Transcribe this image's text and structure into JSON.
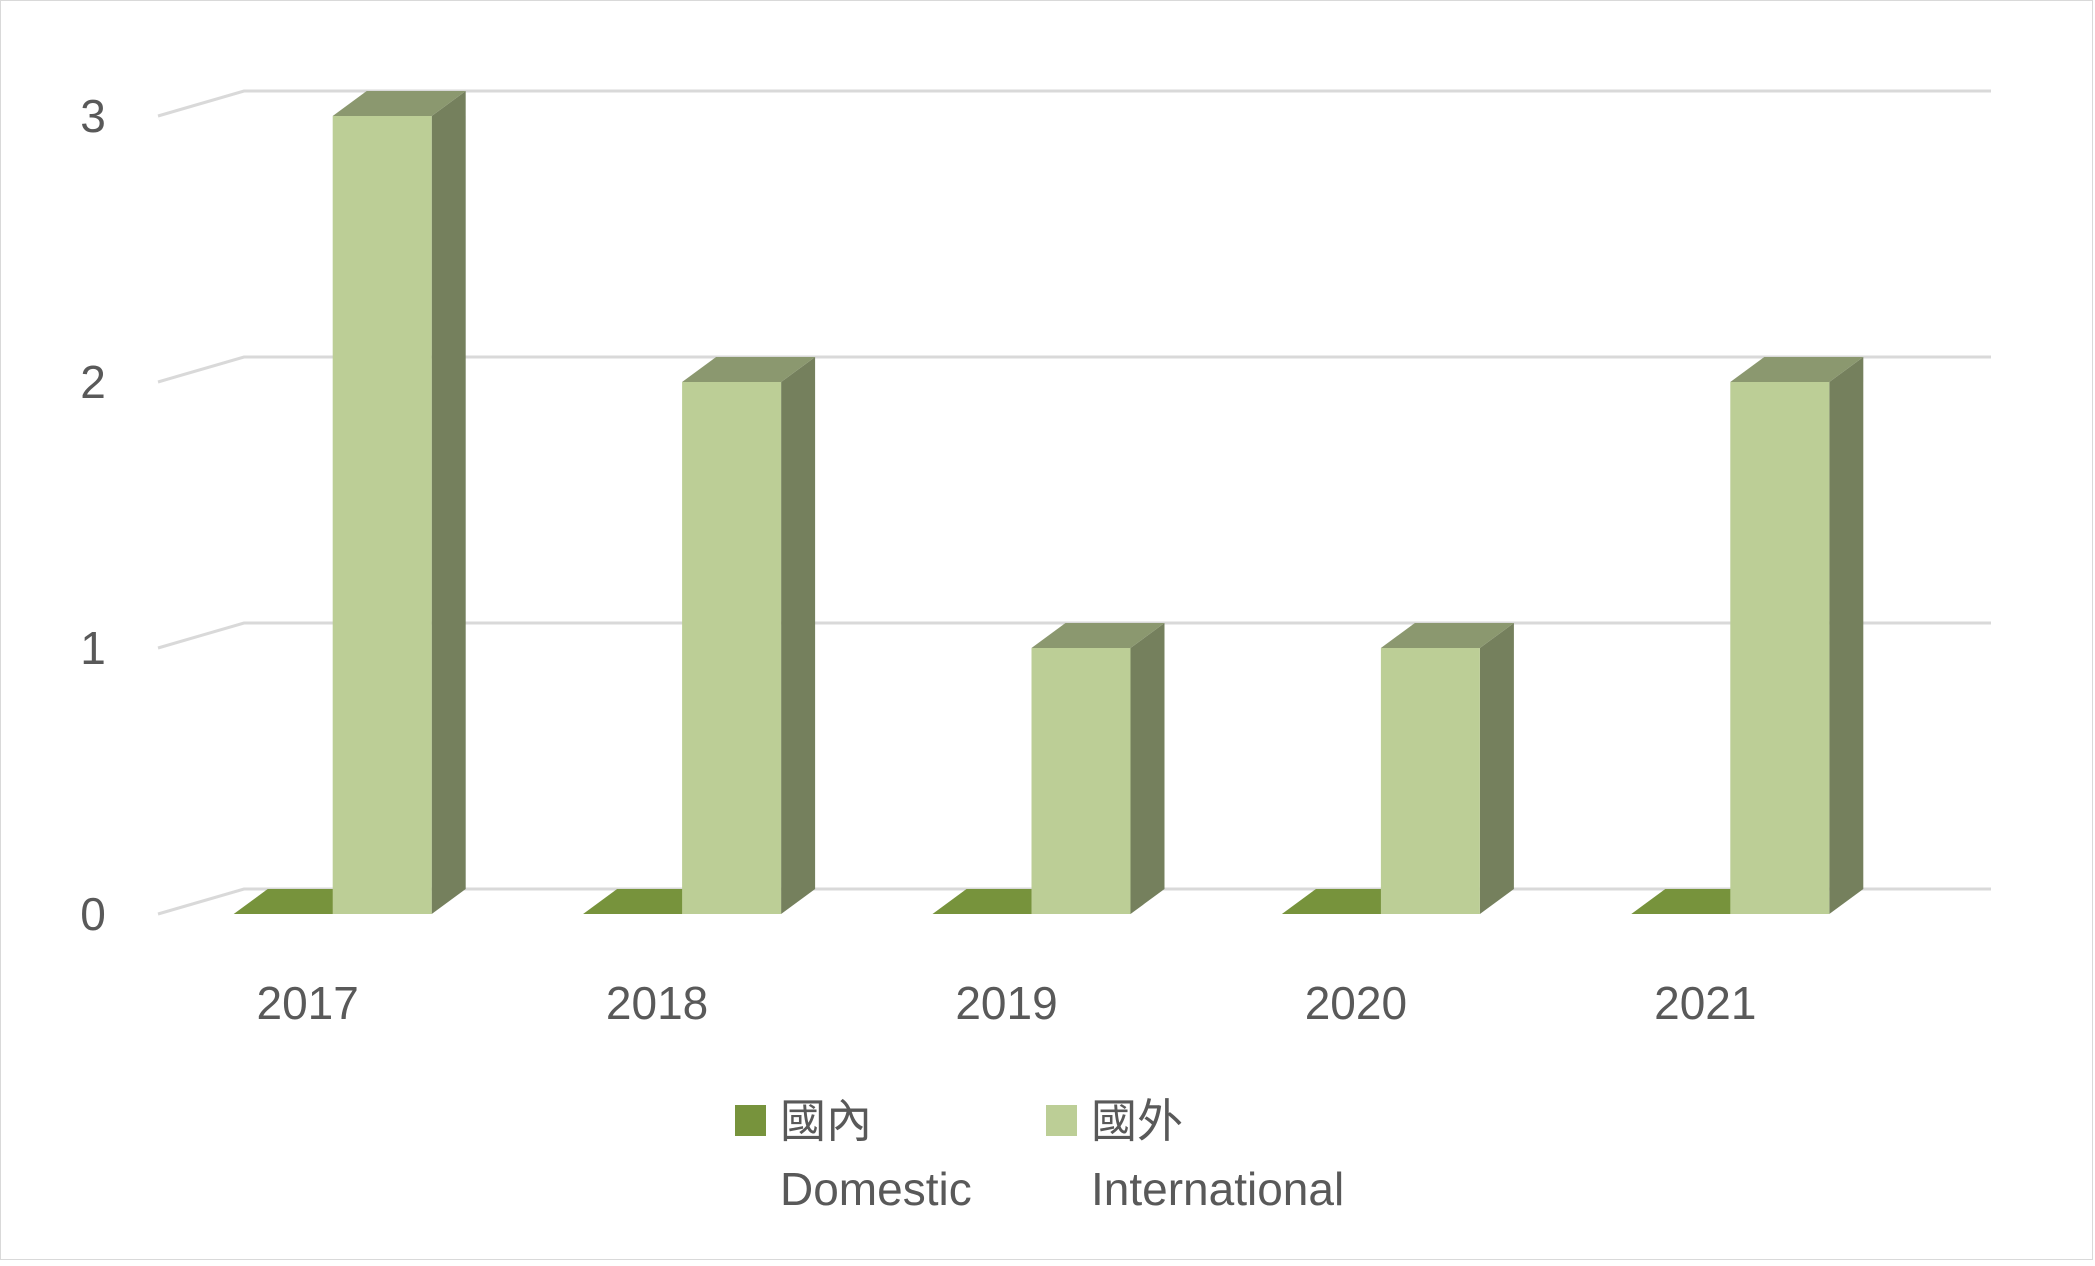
{
  "chart_data": {
    "type": "bar",
    "categories": [
      "2017",
      "2018",
      "2019",
      "2020",
      "2021"
    ],
    "series": [
      {
        "name": "國內\nDomestic",
        "values": [
          0,
          0,
          0,
          0,
          0
        ],
        "color": "#77933c"
      },
      {
        "name": "國外\nInternational",
        "values": [
          3,
          2,
          1,
          1,
          2
        ],
        "color": "#bcce96"
      }
    ],
    "ylim": [
      0,
      3
    ],
    "yticks": [
      0,
      1,
      2,
      3
    ],
    "grid": true,
    "legend_position": "bottom",
    "style": "3d-clustered-column"
  },
  "legend": {
    "domestic_cn": "國內",
    "domestic_en": "Domestic",
    "international_cn": "國外",
    "international_en": "International"
  }
}
